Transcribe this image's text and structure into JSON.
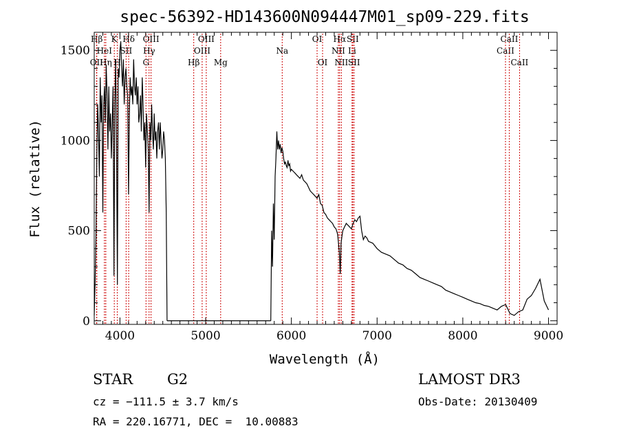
{
  "chart_data": {
    "type": "line",
    "title": "spec-56392-HD143600N094447M01_sp09-229.fits",
    "xlabel": "Wavelength (Å)",
    "ylabel": "Flux (relative)",
    "xlim": [
      3700,
      9100
    ],
    "ylim": [
      -20,
      1600
    ],
    "xticks": [
      4000,
      5000,
      6000,
      7000,
      8000,
      9000
    ],
    "yticks": [
      0,
      500,
      1000,
      1500
    ],
    "line_color": "#000000",
    "marker_color": "#cc0000",
    "grid": false,
    "spectrum_blue": {
      "x": [
        3700,
        3710,
        3720,
        3730,
        3740,
        3750,
        3760,
        3770,
        3780,
        3790,
        3800,
        3810,
        3820,
        3830,
        3840,
        3850,
        3860,
        3870,
        3880,
        3890,
        3900,
        3910,
        3920,
        3930,
        3940,
        3950,
        3960,
        3970,
        3980,
        3990,
        4000,
        4010,
        4020,
        4030,
        4040,
        4050,
        4060,
        4070,
        4080,
        4090,
        4100,
        4110,
        4120,
        4130,
        4140,
        4150,
        4160,
        4170,
        4180,
        4190,
        4200,
        4210,
        4220,
        4230,
        4240,
        4250,
        4260,
        4270,
        4280,
        4290,
        4300,
        4310,
        4320,
        4330,
        4340,
        4350,
        4360,
        4370,
        4380,
        4390,
        4400,
        4410,
        4420,
        4430,
        4440,
        4450,
        4460,
        4470,
        4480,
        4490,
        4500,
        4510,
        4520,
        4530,
        4540,
        4550
      ],
      "y": [
        30,
        200,
        450,
        900,
        1200,
        1050,
        800,
        1350,
        1100,
        1250,
        600,
        1200,
        1300,
        1100,
        1420,
        1250,
        950,
        1300,
        1050,
        1150,
        900,
        1100,
        1300,
        250,
        1200,
        1450,
        1000,
        200,
        1400,
        1350,
        1500,
        1550,
        1400,
        1300,
        1450,
        1200,
        1350,
        1400,
        1300,
        1250,
        700,
        1150,
        1350,
        1250,
        1300,
        1200,
        1450,
        1300,
        1250,
        1350,
        1200,
        1300,
        1100,
        1150,
        1250,
        1050,
        1350,
        1200,
        1000,
        1100,
        850,
        1150,
        1050,
        950,
        600,
        1100,
        1000,
        1200,
        1050,
        950,
        1150,
        1000,
        1050,
        900,
        1050,
        1100,
        950,
        1100,
        1000,
        900,
        950,
        1050,
        1000,
        900,
        600,
        0
      ]
    },
    "spectrum_red": {
      "x": [
        5760,
        5770,
        5780,
        5790,
        5800,
        5810,
        5820,
        5830,
        5840,
        5850,
        5860,
        5870,
        5880,
        5890,
        5900,
        5910,
        5920,
        5930,
        5940,
        5950,
        5960,
        5970,
        5980,
        5990,
        6000,
        6020,
        6040,
        6060,
        6080,
        6100,
        6120,
        6140,
        6160,
        6180,
        6200,
        6220,
        6240,
        6260,
        6280,
        6300,
        6320,
        6340,
        6360,
        6380,
        6400,
        6420,
        6440,
        6460,
        6480,
        6500,
        6520,
        6540,
        6560,
        6570,
        6580,
        6590,
        6600,
        6620,
        6640,
        6660,
        6680,
        6700,
        6720,
        6740,
        6760,
        6780,
        6800,
        6820,
        6840,
        6860,
        6880,
        6900,
        6950,
        7000,
        7050,
        7100,
        7150,
        7200,
        7250,
        7300,
        7350,
        7400,
        7450,
        7500,
        7550,
        7600,
        7650,
        7700,
        7750,
        7800,
        7850,
        7900,
        7950,
        8000,
        8050,
        8100,
        8150,
        8200,
        8250,
        8300,
        8350,
        8400,
        8450,
        8500,
        8550,
        8600,
        8650,
        8700,
        8750,
        8800,
        8850,
        8900,
        8950,
        9000
      ],
      "y": [
        0,
        500,
        300,
        650,
        450,
        800,
        900,
        1050,
        950,
        1000,
        950,
        980,
        930,
        960,
        940,
        900,
        870,
        880,
        860,
        850,
        890,
        860,
        870,
        830,
        840,
        830,
        820,
        810,
        800,
        790,
        810,
        780,
        770,
        760,
        740,
        720,
        710,
        700,
        690,
        680,
        700,
        650,
        640,
        600,
        590,
        570,
        560,
        550,
        540,
        520,
        510,
        480,
        380,
        260,
        430,
        470,
        500,
        520,
        540,
        530,
        520,
        510,
        540,
        560,
        550,
        570,
        580,
        500,
        450,
        470,
        460,
        440,
        430,
        400,
        380,
        370,
        360,
        340,
        320,
        310,
        290,
        280,
        260,
        240,
        230,
        220,
        210,
        200,
        190,
        170,
        160,
        150,
        140,
        130,
        120,
        110,
        100,
        95,
        85,
        80,
        70,
        60,
        80,
        90,
        40,
        30,
        50,
        60,
        120,
        140,
        180,
        230,
        110,
        60
      ]
    },
    "line_markers": [
      {
        "label": "Hβ",
        "x": 3730,
        "row": 1
      },
      {
        "label": "OII",
        "x": 3727,
        "row": 3
      },
      {
        "label": "HeI",
        "x": 3819,
        "row": 2
      },
      {
        "label": "Hη",
        "x": 3835,
        "row": 3
      },
      {
        "label": "K",
        "x": 3934,
        "row": 1
      },
      {
        "label": "H",
        "x": 3969,
        "row": 3
      },
      {
        "label": "SII",
        "x": 4072,
        "row": 2
      },
      {
        "label": "Hδ",
        "x": 4102,
        "row": 1
      },
      {
        "label": "OIII",
        "x": 4363,
        "row": 1
      },
      {
        "label": "Hγ",
        "x": 4340,
        "row": 2
      },
      {
        "label": "G",
        "x": 4304,
        "row": 3
      },
      {
        "label": "Hβ",
        "x": 4861,
        "row": 3
      },
      {
        "label": "OIII",
        "x": 4959,
        "row": 2
      },
      {
        "label": "OIII",
        "x": 5007,
        "row": 1
      },
      {
        "label": "Mg",
        "x": 5175,
        "row": 3
      },
      {
        "label": "Na",
        "x": 5893,
        "row": 2
      },
      {
        "label": "OI",
        "x": 6300,
        "row": 1
      },
      {
        "label": "OI",
        "x": 6364,
        "row": 3
      },
      {
        "label": "NII",
        "x": 6548,
        "row": 2
      },
      {
        "label": "Hα",
        "x": 6563,
        "row": 1
      },
      {
        "label": "NII",
        "x": 6583,
        "row": 3
      },
      {
        "label": "SII",
        "x": 6716,
        "row": 1
      },
      {
        "label": "Li",
        "x": 6708,
        "row": 2
      },
      {
        "label": "SII",
        "x": 6731,
        "row": 3
      },
      {
        "label": "CaII",
        "x": 8498,
        "row": 2
      },
      {
        "label": "CaII",
        "x": 8542,
        "row": 1
      },
      {
        "label": "CaII",
        "x": 8662,
        "row": 3
      }
    ]
  },
  "footer": {
    "object_type": "STAR",
    "subclass": "G2",
    "survey": "LAMOST DR3",
    "cz": "cz = −111.5 ± 3.7 km/s",
    "obs_date": "Obs-Date: 20130409",
    "coords": "RA = 220.16771, DEC =  10.00883"
  }
}
